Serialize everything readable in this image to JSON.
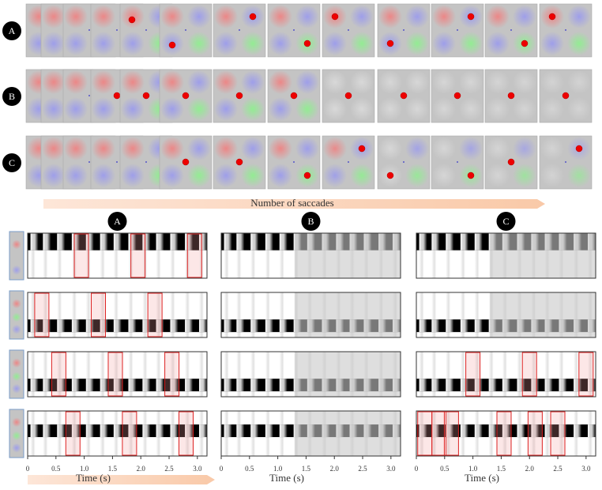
{
  "top": {
    "row_labels": [
      "A",
      "B",
      "C"
    ],
    "arrow_label": "Number of saccades"
  },
  "bottom": {
    "column_labels": [
      "A",
      "B",
      "C"
    ],
    "xlim": [
      0,
      3.17
    ],
    "xticks": [
      0,
      0.5,
      {
        "value": 1,
        "label": "1.0"
      },
      1.5,
      {
        "value": 2,
        "label": "2.0"
      },
      2.5,
      {
        "value": 3,
        "label": "3.0"
      }
    ],
    "xlabel": "Time (s)"
  }
}
